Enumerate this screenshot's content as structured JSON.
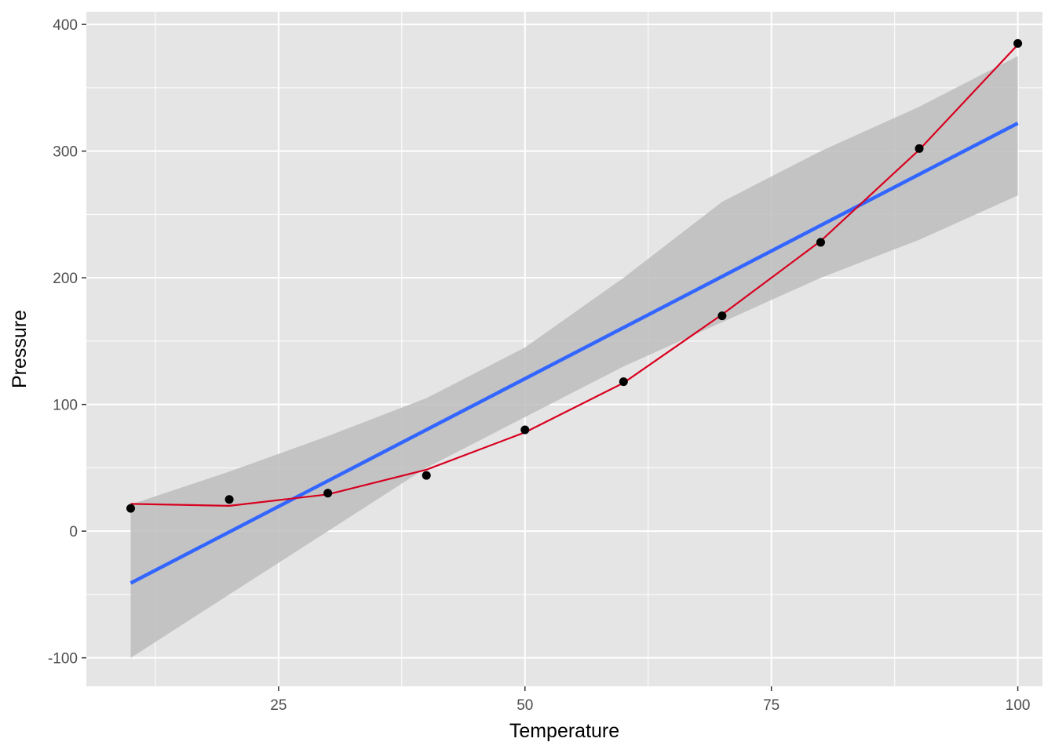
{
  "chart_data": {
    "type": "scatter",
    "title": "",
    "xlabel": "Temperature",
    "ylabel": "Pressure",
    "xlim": [
      5.5,
      102.5
    ],
    "ylim": [
      -122.5,
      410
    ],
    "x_ticks": [
      25,
      50,
      75,
      100
    ],
    "y_ticks": [
      -100,
      0,
      100,
      200,
      300,
      400
    ],
    "x_tick_labels": [
      "25",
      "50",
      "75",
      "100"
    ],
    "y_tick_labels": [
      "-100",
      "0",
      "100",
      "200",
      "300",
      "400"
    ],
    "grid": true,
    "points": {
      "x": [
        10,
        20,
        30,
        40,
        50,
        60,
        70,
        80,
        90,
        100
      ],
      "y": [
        18,
        25,
        30,
        44,
        80,
        118,
        170,
        228,
        302,
        385
      ]
    },
    "smooth_line": {
      "x": [
        10,
        20,
        30,
        40,
        50,
        60,
        70,
        80,
        90,
        100
      ],
      "y": [
        21.5,
        20,
        29,
        48.5,
        78,
        117,
        171,
        229,
        301,
        384
      ]
    },
    "linear_fit": {
      "x": [
        10,
        100
      ],
      "y": [
        -41,
        322
      ]
    },
    "confidence_band": {
      "x": [
        10,
        20,
        30,
        40,
        50,
        60,
        70,
        80,
        90,
        100
      ],
      "upper": [
        21,
        47,
        75,
        105,
        145,
        200,
        260,
        300,
        335,
        375
      ],
      "lower": [
        -100,
        -50,
        0,
        50,
        90,
        130,
        165,
        200,
        230,
        265
      ]
    },
    "colors": {
      "panel": "#e5e5e5",
      "grid": "#ffffff",
      "points": "#000000",
      "smooth_line": "#d7001f",
      "linear_fit": "#3366ff",
      "band": "#bdbdbd"
    }
  }
}
